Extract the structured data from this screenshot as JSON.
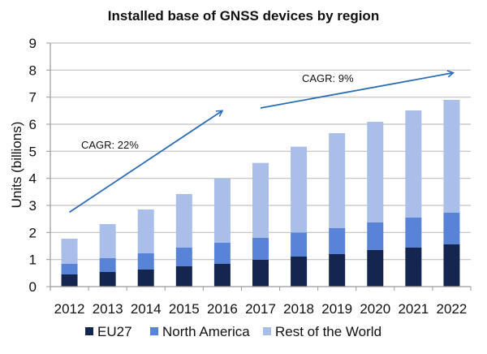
{
  "chart_data": {
    "type": "bar",
    "stacked": true,
    "title": "Installed base of GNSS devices by region",
    "xlabel": "",
    "ylabel": "Units (billions)",
    "ylim": [
      0,
      9
    ],
    "yticks": [
      "0",
      "1",
      "2",
      "3",
      "4",
      "5",
      "6",
      "7",
      "8",
      "9"
    ],
    "grid": true,
    "legend_position": "bottom",
    "categories": [
      "2012",
      "2013",
      "2014",
      "2015",
      "2016",
      "2017",
      "2018",
      "2019",
      "2020",
      "2021",
      "2022"
    ],
    "series": [
      {
        "name": "EU27",
        "color": "#14254f",
        "values": [
          0.45,
          0.54,
          0.63,
          0.75,
          0.84,
          0.99,
          1.11,
          1.2,
          1.35,
          1.44,
          1.56
        ]
      },
      {
        "name": "North America",
        "color": "#5883d6",
        "values": [
          0.39,
          0.51,
          0.6,
          0.69,
          0.78,
          0.81,
          0.89,
          0.96,
          1.02,
          1.11,
          1.17
        ]
      },
      {
        "name": "Rest of the World",
        "color": "#a9bfe9",
        "values": [
          0.93,
          1.26,
          1.62,
          1.98,
          2.38,
          2.77,
          3.17,
          3.51,
          3.72,
          3.96,
          4.17
        ]
      }
    ],
    "totals": [
      1.77,
      2.31,
      2.85,
      3.42,
      4.0,
      4.57,
      5.17,
      5.67,
      6.09,
      6.51,
      6.9
    ],
    "annotations": [
      {
        "text": "CAGR: 22%",
        "arrow_from": [
          "2012",
          2.75
        ],
        "arrow_to": [
          "2016",
          6.5
        ]
      },
      {
        "text": "CAGR: 9%",
        "arrow_from": [
          "2017",
          6.6
        ],
        "arrow_to": [
          "2022",
          7.9
        ]
      }
    ],
    "annotation_color": "#2e6db4"
  }
}
